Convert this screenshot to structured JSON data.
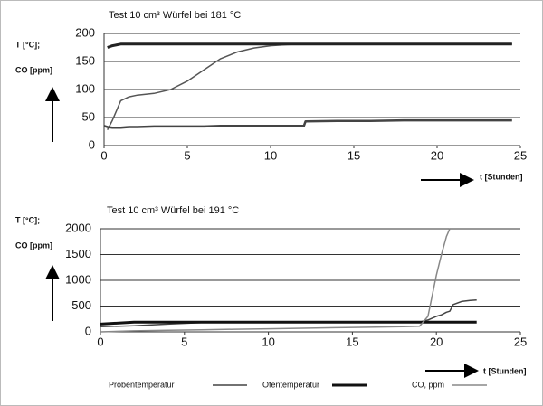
{
  "chart_data": [
    {
      "type": "line",
      "title": "Test 10 cm³ Würfel bei 181 °C",
      "ylabel": [
        "T [°C];",
        "CO [ppm]"
      ],
      "xlabel": "t [Stunden]",
      "x": [
        0,
        0.2,
        0.5,
        1,
        1.5,
        2,
        3,
        4,
        5,
        6,
        7,
        8,
        9,
        10,
        11,
        12,
        12.1,
        14,
        16,
        18,
        20,
        22,
        24.5
      ],
      "series": [
        {
          "color": "#555555",
          "width": 1.5,
          "values": [
            null,
            28,
            45,
            80,
            87,
            90,
            93,
            100,
            115,
            135,
            155,
            167,
            174,
            178,
            180,
            181,
            181,
            181,
            181,
            181,
            181,
            181,
            181
          ]
        },
        {
          "color": "#222222",
          "width": 3,
          "values": [
            null,
            175,
            178,
            181,
            181,
            181,
            181,
            181,
            181,
            181,
            181,
            181,
            181,
            181,
            181,
            181,
            181,
            181,
            181,
            181,
            181,
            181,
            181
          ]
        },
        {
          "color": "#444444",
          "width": 2.5,
          "values": [
            35,
            33,
            32,
            32,
            33,
            33,
            34,
            34,
            34,
            34,
            35,
            35,
            35,
            35,
            35,
            35,
            43,
            44,
            44,
            45,
            45,
            45,
            45
          ]
        }
      ],
      "xlim": [
        0,
        25
      ],
      "xticks": [
        0,
        5,
        10,
        15,
        20,
        25
      ],
      "ylim": [
        0,
        200
      ],
      "yticks": [
        0,
        50,
        100,
        150,
        200
      ],
      "grid": true
    },
    {
      "type": "line",
      "title": "Test 10 cm³ Würfel bei 191 °C",
      "ylabel": [
        "T [°C];",
        "CO [ppm]"
      ],
      "xlabel": "t [Stunden]",
      "x": [
        0,
        2,
        4,
        6,
        8,
        10,
        12,
        14,
        16,
        18,
        19,
        19.5,
        20,
        20.3,
        20.6,
        20.8,
        21,
        21.5,
        22,
        22.4
      ],
      "series": [
        {
          "name": "Probentemperatur",
          "color": "#444444",
          "width": 1.5,
          "values": [
            100,
            120,
            150,
            180,
            180,
            185,
            185,
            188,
            188,
            190,
            190,
            230,
            300,
            330,
            380,
            400,
            530,
            590,
            610,
            620
          ]
        },
        {
          "name": "Ofentemperatur",
          "color": "#111111",
          "width": 3,
          "values": [
            150,
            190,
            190,
            190,
            190,
            190,
            190,
            190,
            190,
            190,
            190,
            190,
            190,
            190,
            190,
            190,
            190,
            190,
            190,
            190
          ]
        },
        {
          "name": "CO, ppm",
          "color": "#888888",
          "width": 1.5,
          "values": [
            0,
            20,
            30,
            40,
            50,
            60,
            70,
            80,
            90,
            100,
            110,
            300,
            1100,
            1500,
            1850,
            2000,
            null,
            null,
            null,
            null
          ]
        }
      ],
      "xlim": [
        0,
        25
      ],
      "xticks": [
        0,
        5,
        10,
        15,
        20,
        25
      ],
      "ylim": [
        0,
        2000
      ],
      "yticks": [
        0,
        500,
        1000,
        1500,
        2000
      ],
      "grid": true
    }
  ]
}
